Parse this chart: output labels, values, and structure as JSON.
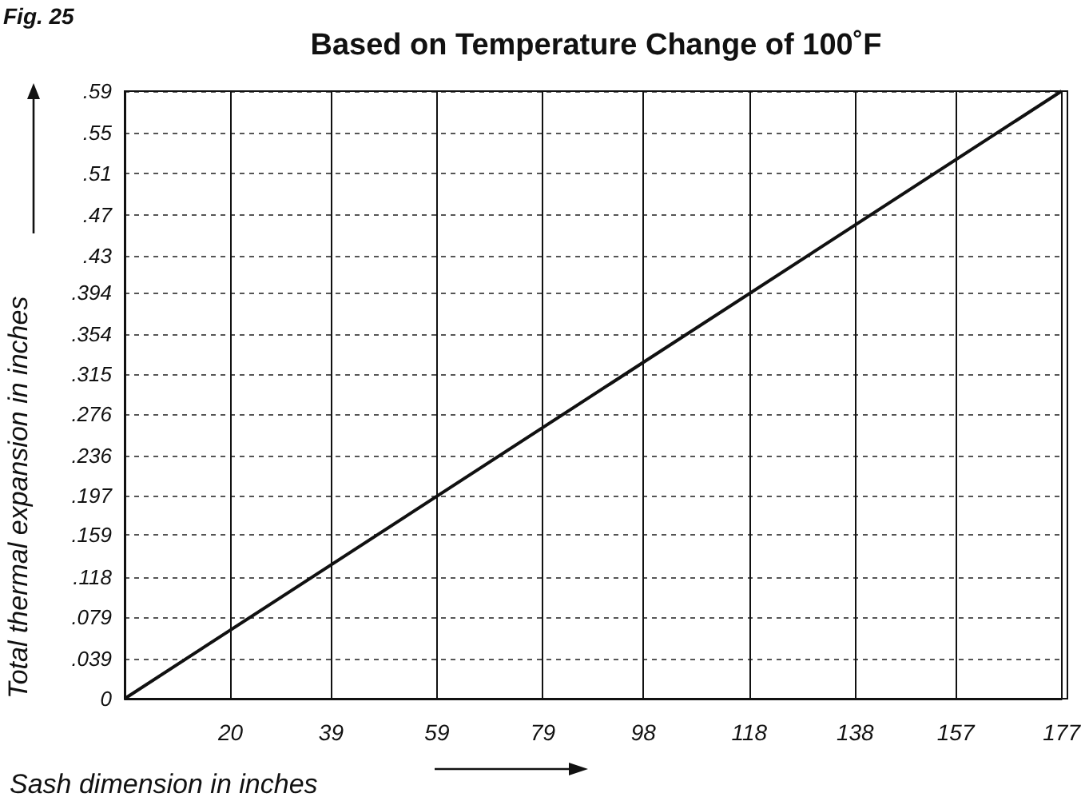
{
  "chart_data": {
    "type": "line",
    "title": "Based on Temperature Change of 100˚F",
    "annotations": [
      "Fig. 25"
    ],
    "xlabel": "Sash dimension in inches",
    "ylabel": "Total thermal expansion in inches",
    "x": [
      0,
      177
    ],
    "series": [
      {
        "color": "#111111",
        "values": [
          0,
          0.59
        ]
      }
    ],
    "xlim": [
      0,
      177
    ],
    "xticks": [
      20,
      39,
      59,
      79,
      98,
      118,
      138,
      157,
      177
    ],
    "ylim": [
      0,
      0.59
    ],
    "yticks": [
      0,
      {
        "value": 0.039,
        "label": ".039"
      },
      {
        "value": 0.079,
        "label": ".079"
      },
      {
        "value": 0.118,
        "label": ".118"
      },
      {
        "value": 0.159,
        "label": ".159"
      },
      {
        "value": 0.197,
        "label": ".197"
      },
      {
        "value": 0.236,
        "label": ".236"
      },
      {
        "value": 0.276,
        "label": ".276"
      },
      {
        "value": 0.315,
        "label": ".315"
      },
      {
        "value": 0.354,
        "label": ".354"
      },
      {
        "value": 0.394,
        "label": ".394"
      },
      {
        "value": 0.43,
        "label": ".43"
      },
      {
        "value": 0.47,
        "label": ".47"
      },
      {
        "value": 0.51,
        "label": ".51"
      },
      {
        "value": 0.55,
        "label": ".55"
      },
      {
        "value": 0.59,
        "label": ".59"
      }
    ],
    "grid": true,
    "marker": "none",
    "line_style": "solid"
  }
}
